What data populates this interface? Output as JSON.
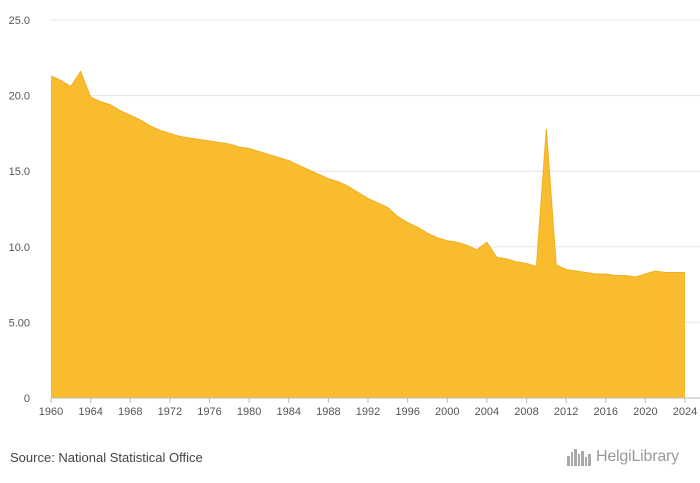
{
  "chart_data": {
    "type": "area",
    "title": "",
    "xlabel": "",
    "ylabel": "",
    "xlim": [
      1960,
      2024
    ],
    "ylim": [
      0,
      25
    ],
    "yticks": [
      {
        "value": 0,
        "label": "0"
      },
      {
        "value": 5,
        "label": "5.00"
      },
      {
        "value": 10,
        "label": "10.0"
      },
      {
        "value": 15,
        "label": "15.0"
      },
      {
        "value": 20,
        "label": "20.0"
      },
      {
        "value": 25,
        "label": "25.0"
      }
    ],
    "xticks": [
      1960,
      1964,
      1968,
      1972,
      1976,
      1980,
      1984,
      1988,
      1992,
      1996,
      2000,
      2004,
      2008,
      2012,
      2016,
      2020,
      2024
    ],
    "grid": true,
    "fill_color": "#f8bc2e",
    "line_color": "#f0b020",
    "series": [
      {
        "name": "value",
        "x": [
          1960,
          1961,
          1962,
          1963,
          1964,
          1965,
          1966,
          1967,
          1968,
          1969,
          1970,
          1971,
          1972,
          1973,
          1974,
          1975,
          1976,
          1977,
          1978,
          1979,
          1980,
          1981,
          1982,
          1983,
          1984,
          1985,
          1986,
          1987,
          1988,
          1989,
          1990,
          1991,
          1992,
          1993,
          1994,
          1995,
          1996,
          1997,
          1998,
          1999,
          2000,
          2001,
          2002,
          2003,
          2004,
          2005,
          2006,
          2007,
          2008,
          2009,
          2010,
          2011,
          2012,
          2013,
          2014,
          2015,
          2016,
          2017,
          2018,
          2019,
          2020,
          2021,
          2022,
          2023,
          2024
        ],
        "values": [
          21.3,
          21.0,
          20.6,
          21.6,
          19.9,
          19.6,
          19.4,
          19.0,
          18.7,
          18.4,
          18.0,
          17.7,
          17.5,
          17.3,
          17.2,
          17.1,
          17.0,
          16.9,
          16.8,
          16.6,
          16.5,
          16.3,
          16.1,
          15.9,
          15.7,
          15.4,
          15.1,
          14.8,
          14.5,
          14.3,
          14.0,
          13.6,
          13.2,
          12.9,
          12.6,
          12.0,
          11.6,
          11.3,
          10.9,
          10.6,
          10.4,
          10.3,
          10.1,
          9.8,
          10.3,
          9.3,
          9.2,
          9.0,
          8.9,
          8.7,
          17.8,
          8.8,
          8.5,
          8.4,
          8.3,
          8.2,
          8.2,
          8.1,
          8.1,
          8.0,
          8.2,
          8.4,
          8.3,
          8.3,
          8.3
        ]
      }
    ]
  },
  "footer": {
    "source": "Source: National Statistical Office",
    "brand": "HelgiLibrary"
  },
  "icons": {
    "brand_logo": "city-skyline-icon"
  }
}
